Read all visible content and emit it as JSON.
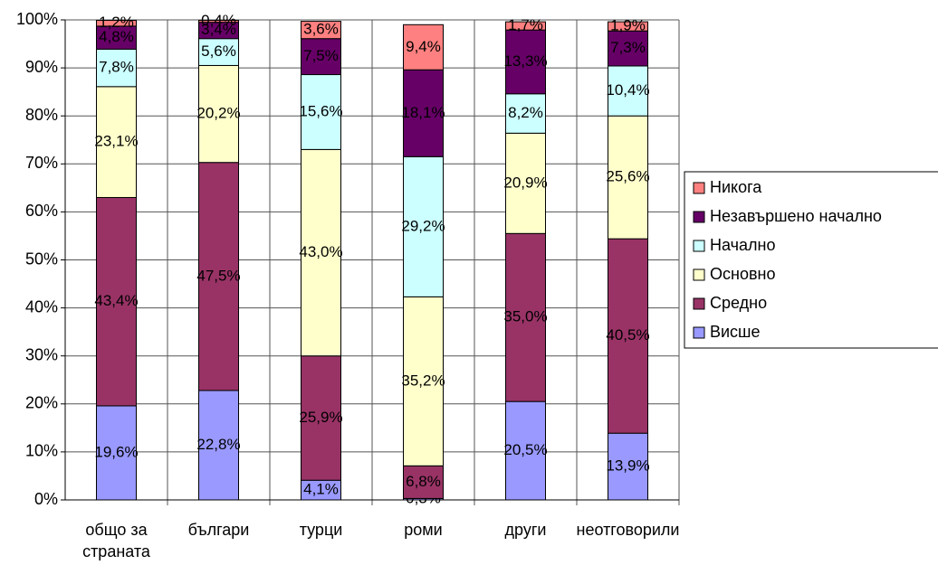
{
  "chart_data": {
    "type": "stacked-bar",
    "categories": [
      [
        "общо за",
        "страната"
      ],
      "българи",
      "турци",
      "роми",
      "други",
      "неотговорили"
    ],
    "series": [
      {
        "name": "Висше",
        "color": "#9999ff",
        "values": [
          19.6,
          22.8,
          4.1,
          0.3,
          20.5,
          13.9
        ],
        "value_labels": [
          "19,6%",
          "22,8%",
          "4,1%",
          "0,3%",
          "20,5%",
          "13,9%"
        ]
      },
      {
        "name": "Средно",
        "color": "#993366",
        "values": [
          43.4,
          47.5,
          25.9,
          6.8,
          35.0,
          40.5
        ],
        "value_labels": [
          "43,4%",
          "47,5%",
          "25,9%",
          "6,8%",
          "35,0%",
          "40,5%"
        ]
      },
      {
        "name": "Основно",
        "color": "#ffffcc",
        "values": [
          23.1,
          20.2,
          43.0,
          35.2,
          20.9,
          25.6
        ],
        "value_labels": [
          "23,1%",
          "20,2%",
          "43,0%",
          "35,2%",
          "20,9%",
          "25,6%"
        ]
      },
      {
        "name": "Начално",
        "color": "#ccffff",
        "values": [
          7.8,
          5.6,
          15.6,
          29.2,
          8.2,
          10.4
        ],
        "value_labels": [
          "7,8%",
          "5,6%",
          "15,6%",
          "29,2%",
          "8,2%",
          "10,4%"
        ]
      },
      {
        "name": "Незавършено начално",
        "color": "#660066",
        "values": [
          4.8,
          3.4,
          7.5,
          18.1,
          13.3,
          7.3
        ],
        "value_labels": [
          "4,8%",
          "3,4%",
          "7,5%",
          "18,1%",
          "13,3%",
          "7,3%"
        ]
      },
      {
        "name": "Никога",
        "color": "#ff8080",
        "values": [
          1.2,
          0.4,
          3.6,
          9.4,
          1.7,
          1.9
        ],
        "value_labels": [
          "1,2%",
          "0,4%",
          "3,6%",
          "9,4%",
          "1,7%",
          "1,9%"
        ]
      }
    ],
    "ylim": [
      0,
      100
    ],
    "yticks": [
      {
        "value": 0,
        "label": "0%"
      },
      {
        "value": 10,
        "label": "10%"
      },
      {
        "value": 20,
        "label": "20%"
      },
      {
        "value": 30,
        "label": "30%"
      },
      {
        "value": 40,
        "label": "40%"
      },
      {
        "value": 50,
        "label": "50%"
      },
      {
        "value": 60,
        "label": "60%"
      },
      {
        "value": 70,
        "label": "70%"
      },
      {
        "value": 80,
        "label": "80%"
      },
      {
        "value": 90,
        "label": "90%"
      },
      {
        "value": 100,
        "label": "100%"
      }
    ],
    "grid": true,
    "legend": "right"
  }
}
